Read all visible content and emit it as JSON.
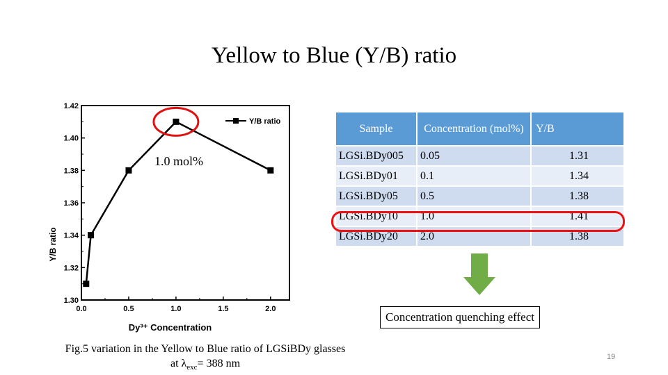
{
  "slide": {
    "title": "Yellow to Blue (Y/B) ratio",
    "annotation": "1.0 mol%",
    "caption_line1": "Fig.5 variation in the Yellow to Blue ratio of LGSiBDy glasses",
    "caption_line2_prefix": "at λ",
    "caption_line2_sub": "exc",
    "caption_line2_suffix": "= 388 nm",
    "effect": "Concentration quenching effect",
    "page_number": "19"
  },
  "chart_data": {
    "type": "line",
    "x": [
      0.05,
      0.1,
      0.5,
      1.0,
      2.0
    ],
    "series": [
      {
        "name": "Y/B ratio",
        "values": [
          1.31,
          1.34,
          1.38,
          1.41,
          1.38
        ],
        "color": "#000000"
      }
    ],
    "xlabel": "Dy³⁺ Concentration",
    "ylabel": "Y/B ratio",
    "xlim": [
      0,
      2.2
    ],
    "ylim": [
      1.3,
      1.42
    ],
    "xticks": [
      "0.0",
      "0.5",
      "1.0",
      "1.5",
      "2.0"
    ],
    "yticks": [
      "1.30",
      "1.32",
      "1.34",
      "1.36",
      "1.38",
      "1.40",
      "1.42"
    ],
    "legend": "top-right",
    "highlight_point": {
      "x": 1.0,
      "y": 1.41,
      "color": "#e11111"
    }
  },
  "table": {
    "headers": [
      "Sample",
      "Concentration (mol%)",
      "Y/B"
    ],
    "rows": [
      {
        "sample": "LGSi.BDy005",
        "conc": "0.05",
        "yb": "1.31"
      },
      {
        "sample": "LGSi.BDy01",
        "conc": "0.1",
        "yb": "1.34"
      },
      {
        "sample": "LGSi.BDy05",
        "conc": "0.5",
        "yb": "1.38"
      },
      {
        "sample": "LGSi.BDy10",
        "conc": "1.0",
        "yb": "1.41"
      },
      {
        "sample": "LGSi.BDy20",
        "conc": "2.0",
        "yb": "1.38"
      }
    ],
    "highlight_row": 3
  },
  "colors": {
    "header_blue": "#5b9bd5",
    "row_dark": "#cfdcef",
    "row_light": "#e8eef7",
    "highlight_red": "#e11111",
    "arrow_green": "#70ad47"
  }
}
